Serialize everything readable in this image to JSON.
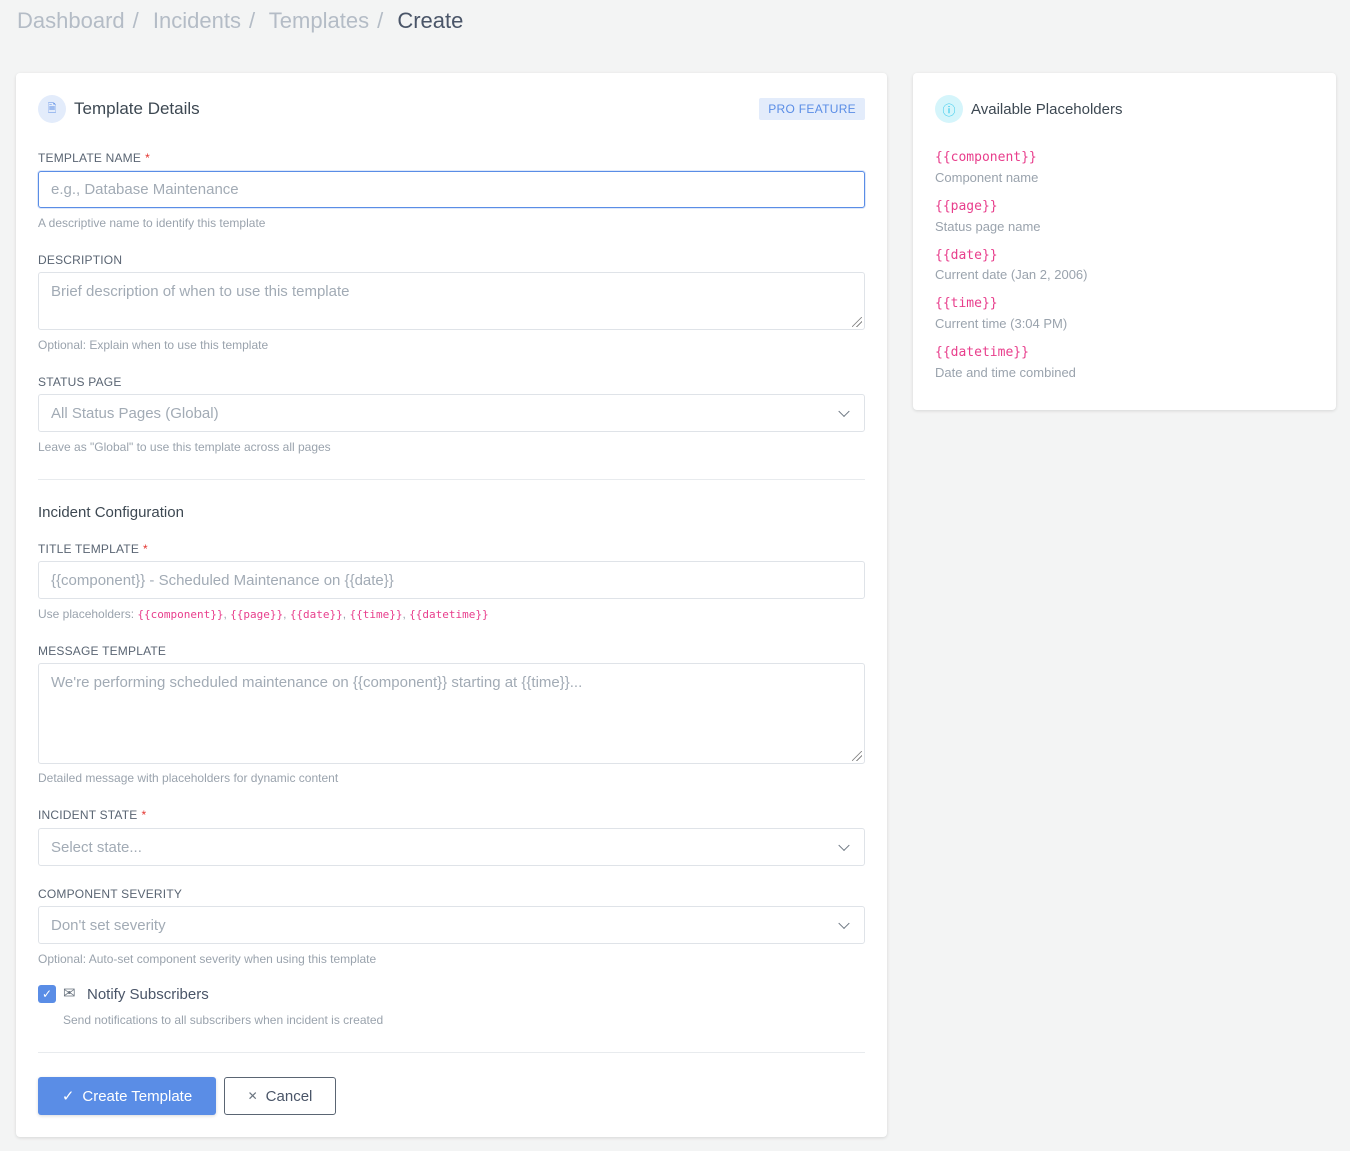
{
  "breadcrumb": {
    "items": [
      "Dashboard",
      "Incidents",
      "Templates"
    ],
    "current": "Create"
  },
  "form": {
    "title": "Template Details",
    "badge": "PRO FEATURE",
    "template_name": {
      "label": "TEMPLATE NAME",
      "placeholder": "e.g., Database Maintenance",
      "value": "",
      "help": "A descriptive name to identify this template"
    },
    "description": {
      "label": "DESCRIPTION",
      "placeholder": "Brief description of when to use this template",
      "help": "Optional: Explain when to use this template"
    },
    "status_page": {
      "label": "STATUS PAGE",
      "value": "All Status Pages (Global)",
      "help": "Leave as \"Global\" to use this template across all pages"
    },
    "section": "Incident Configuration",
    "title_template": {
      "label": "TITLE TEMPLATE",
      "placeholder": "{{component}} - Scheduled Maintenance on {{date}}",
      "help_prefix": "Use placeholders: ",
      "help_codes": [
        "{{component}}",
        "{{page}}",
        "{{date}}",
        "{{time}}",
        "{{datetime}}"
      ]
    },
    "message_template": {
      "label": "MESSAGE TEMPLATE",
      "placeholder": "We're performing scheduled maintenance on {{component}} starting at {{time}}...",
      "help": "Detailed message with placeholders for dynamic content"
    },
    "incident_state": {
      "label": "INCIDENT STATE",
      "value": "Select state..."
    },
    "component_severity": {
      "label": "COMPONENT SEVERITY",
      "value": "Don't set severity",
      "help": "Optional: Auto-set component severity when using this template"
    },
    "notify": {
      "label": "Notify Subscribers",
      "checked": true,
      "help": "Send notifications to all subscribers when incident is created"
    },
    "create_label": "Create Template",
    "cancel_label": "Cancel",
    "required_mark": "*"
  },
  "placeholders": {
    "title": "Available Placeholders",
    "items": [
      {
        "code": "{{component}}",
        "desc": "Component name"
      },
      {
        "code": "{{page}}",
        "desc": "Status page name"
      },
      {
        "code": "{{date}}",
        "desc": "Current date (Jan 2, 2006)"
      },
      {
        "code": "{{time}}",
        "desc": "Current time (3:04 PM)"
      },
      {
        "code": "{{datetime}}",
        "desc": "Date and time combined"
      }
    ]
  },
  "colors": {
    "primary": "#5a8de6",
    "code": "#e83e8c",
    "info": "#17c1e8"
  }
}
